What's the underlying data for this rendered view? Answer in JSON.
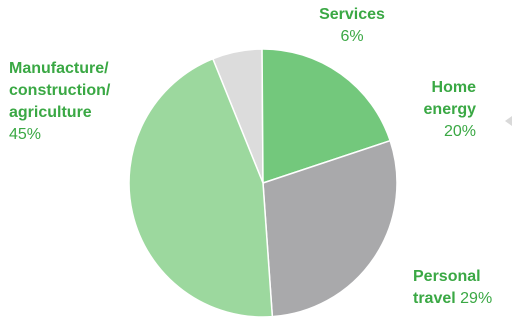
{
  "chart_data": {
    "type": "pie",
    "slices": [
      {
        "name": "Services",
        "value": 6,
        "percent_label": "6%",
        "color": "#dcdcdc"
      },
      {
        "name": "Home energy",
        "value": 20,
        "percent_label": "20%",
        "color": "#73c87c"
      },
      {
        "name": "Personal travel",
        "value": 29,
        "percent_label": "29%",
        "color": "#a9a9ab"
      },
      {
        "name": "Manufacture/construction/agriculture",
        "value": 45,
        "percent_label": "45%",
        "color": "#9cd89e"
      }
    ]
  },
  "labels": {
    "services": {
      "line1": "Services",
      "pct": "6%"
    },
    "home": {
      "line1": "Home",
      "line2": "energy",
      "pct": "20%"
    },
    "personal": {
      "line1": "Personal",
      "line2": "travel",
      "pct": "29%"
    },
    "manu": {
      "line1": "Manufacture/",
      "line2": "construction/",
      "line3": "agriculture",
      "pct": "45%"
    }
  },
  "colors": {
    "label_text": "#3aa844",
    "arrow": "#d9d9d9"
  }
}
